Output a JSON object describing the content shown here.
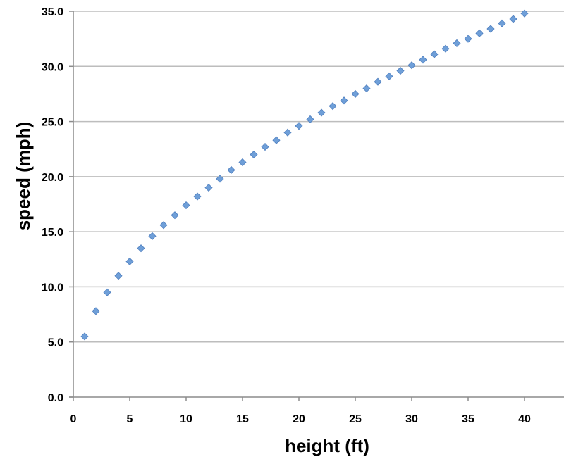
{
  "chart_data": {
    "type": "scatter",
    "title": "",
    "xlabel": "height (ft)",
    "ylabel": "speed (mph)",
    "xlim": [
      0,
      40
    ],
    "ylim": [
      0,
      35
    ],
    "x_ticks": [
      "0",
      "5",
      "10",
      "15",
      "20",
      "25",
      "30",
      "35",
      "40"
    ],
    "y_ticks": [
      "0.0",
      "5.0",
      "10.0",
      "15.0",
      "20.0",
      "25.0",
      "30.0",
      "35.0"
    ],
    "grid": "horizontal",
    "legend": "none",
    "marker": "diamond",
    "colors": {
      "marker": "#6f9fd8",
      "marker_edge": "#4f7fbf",
      "grid": "#bdbdbd",
      "axis": "#8c8c8c"
    },
    "series": [
      {
        "x": [
          1,
          2,
          3,
          4,
          5,
          6,
          7,
          8,
          9,
          10,
          11,
          12,
          13,
          14,
          15,
          16,
          17,
          18,
          19,
          20,
          21,
          22,
          23,
          24,
          25,
          26,
          27,
          28,
          29,
          30,
          31,
          32,
          33,
          34,
          35,
          36,
          37,
          38,
          39,
          40
        ],
        "y": [
          5.5,
          7.8,
          9.5,
          11.0,
          12.3,
          13.5,
          14.6,
          15.6,
          16.5,
          17.4,
          18.2,
          19.0,
          19.8,
          20.6,
          21.3,
          22.0,
          22.7,
          23.3,
          24.0,
          24.6,
          25.2,
          25.8,
          26.4,
          26.9,
          27.5,
          28.0,
          28.6,
          29.1,
          29.6,
          30.1,
          30.6,
          31.1,
          31.6,
          32.1,
          32.5,
          33.0,
          33.4,
          33.9,
          34.3,
          34.8
        ]
      }
    ]
  }
}
